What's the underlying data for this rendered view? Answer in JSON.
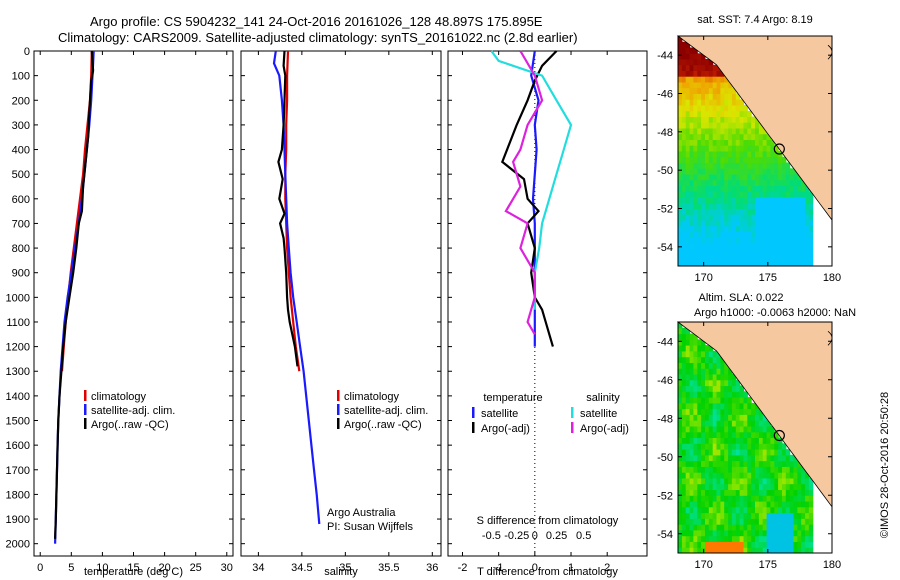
{
  "header": {
    "line1": "Argo profile: CS 5904232_141 24-Oct-2016 20161026_128 48.897S 175.895E",
    "line2": "Climatology: CARS2009. Satellite-adjusted climatology: synTS_20161022.nc (2.8d earlier)"
  },
  "colors": {
    "climatology": "#e00000",
    "satellite_adj": "#1a1aff",
    "argo": "#000000",
    "salinity_satellite": "#22dddd",
    "salinity_argo": "#dd22dd",
    "land": "#f5c8a0"
  },
  "chart_data": [
    {
      "type": "line",
      "id": "temperature",
      "xlabel": "temperature (deg C)",
      "ylabel": "",
      "xlim": [
        -1,
        31
      ],
      "ylim": [
        2050,
        0
      ],
      "y_reversed": true,
      "xticks": [
        "0",
        "5",
        "10",
        "15",
        "20",
        "25",
        "30"
      ],
      "yticks": [
        "0",
        "100",
        "200",
        "300",
        "400",
        "500",
        "600",
        "700",
        "800",
        "900",
        "1000",
        "1100",
        "1200",
        "1300",
        "1400",
        "1500",
        "1600",
        "1700",
        "1800",
        "1900",
        "2000"
      ],
      "legend": [
        "climatology",
        "satellite-adj. clim.",
        "Argo(..raw -QC)"
      ],
      "legend_position": "lower-center",
      "series": [
        {
          "name": "climatology",
          "color": "#e00000",
          "x": [
            8.3,
            8.2,
            8.0,
            7.6,
            7.2,
            6.9,
            6.4,
            5.9,
            5.4,
            4.9,
            4.5,
            4.1,
            3.8,
            3.5
          ],
          "y": [
            0,
            100,
            200,
            300,
            400,
            500,
            600,
            700,
            800,
            900,
            1000,
            1100,
            1200,
            1300
          ]
        },
        {
          "name": "satellite-adj. clim.",
          "color": "#1a1aff",
          "x": [
            8.6,
            8.4,
            8.2,
            7.9,
            7.5,
            7.1,
            6.7,
            6.2,
            5.6,
            5.0,
            4.4,
            3.9,
            3.6,
            3.3,
            3.1,
            2.9,
            2.8,
            2.7,
            2.6,
            2.5,
            2.4
          ],
          "y": [
            0,
            100,
            200,
            300,
            400,
            500,
            600,
            700,
            800,
            900,
            1000,
            1100,
            1200,
            1300,
            1400,
            1500,
            1600,
            1700,
            1800,
            1900,
            2000
          ]
        },
        {
          "name": "Argo(..raw -QC)",
          "color": "#000000",
          "x": [
            8.3,
            8.5,
            8.2,
            7.9,
            7.7,
            7.3,
            6.9,
            6.7,
            6.2,
            5.8,
            5.3,
            4.7,
            4.1,
            3.7,
            3.4,
            3.1,
            2.9,
            2.8,
            2.7,
            2.6,
            2.5,
            2.4
          ],
          "y": [
            0,
            80,
            120,
            250,
            350,
            450,
            550,
            650,
            700,
            800,
            900,
            1000,
            1100,
            1200,
            1300,
            1400,
            1500,
            1600,
            1700,
            1800,
            1900,
            1980
          ]
        }
      ]
    },
    {
      "type": "line",
      "id": "salinity",
      "xlabel": "salinity",
      "xlim": [
        33.8,
        36.1
      ],
      "ylim": [
        2050,
        0
      ],
      "y_reversed": true,
      "xticks": [
        "34",
        "34.5",
        "35",
        "35.5",
        "36"
      ],
      "legend": [
        "climatology",
        "satellite-adj. clim.",
        "Argo(..raw -QC)"
      ],
      "legend_position": "lower-center",
      "annotation_lines": [
        "Argo Australia",
        "PI: Susan Wijffels"
      ],
      "series": [
        {
          "name": "climatology",
          "color": "#e00000",
          "x": [
            34.34,
            34.33,
            34.33,
            34.32,
            34.32,
            34.31,
            34.31,
            34.32,
            34.33,
            34.35,
            34.37,
            34.4,
            34.43,
            34.47
          ],
          "y": [
            0,
            100,
            200,
            300,
            400,
            500,
            600,
            700,
            800,
            900,
            1000,
            1100,
            1200,
            1300
          ]
        },
        {
          "name": "satellite-adj. clim.",
          "color": "#1a1aff",
          "x": [
            34.2,
            34.18,
            34.24,
            34.27,
            34.29,
            34.3,
            34.31,
            34.32,
            34.33,
            34.35,
            34.37,
            34.4,
            34.44,
            34.48,
            34.52,
            34.55,
            34.58,
            34.61,
            34.64,
            34.67,
            34.7
          ],
          "y": [
            0,
            50,
            100,
            200,
            300,
            400,
            500,
            600,
            700,
            800,
            900,
            1000,
            1100,
            1200,
            1300,
            1400,
            1500,
            1600,
            1700,
            1800,
            1920
          ]
        },
        {
          "name": "Argo(..raw -QC)",
          "color": "#000000",
          "x": [
            34.3,
            34.29,
            34.31,
            34.3,
            34.29,
            34.27,
            34.23,
            34.28,
            34.24,
            34.3,
            34.25,
            34.29,
            34.3,
            34.32,
            34.33,
            34.34,
            34.36,
            34.39,
            34.42,
            34.45
          ],
          "y": [
            0,
            60,
            100,
            200,
            300,
            400,
            450,
            520,
            600,
            660,
            700,
            760,
            800,
            900,
            1000,
            1050,
            1100,
            1150,
            1200,
            1280
          ]
        }
      ]
    },
    {
      "type": "line",
      "id": "differences",
      "xlabel_bottom": "T difference from climatology",
      "xlabel_top": "S difference from climatology",
      "xlim": [
        -2.4,
        3.1
      ],
      "ylim": [
        2050,
        0
      ],
      "y_reversed": true,
      "xticks_bottom": [
        "-2",
        "-1",
        "0",
        "1",
        "2"
      ],
      "xticks_top": [
        "-0.5",
        "-0.25",
        "0",
        "0.25",
        "0.5"
      ],
      "zero_line": "dotted",
      "legend_headers": [
        "temperature",
        "salinity"
      ],
      "legend": [
        "satellite",
        "Argo(-adj)",
        "satellite",
        "Argo(-adj)"
      ],
      "legend_position": "lower-center",
      "series": [
        {
          "name": "satellite",
          "group": "temperature",
          "color": "#1a1aff",
          "x": [
            0.0,
            -0.1,
            0.1,
            0.0,
            0.05,
            0.0,
            -0.05,
            0.0,
            0.0,
            0.0,
            0.0,
            0.0
          ],
          "y": [
            0,
            100,
            200,
            300,
            400,
            500,
            600,
            700,
            800,
            900,
            1000,
            1200
          ]
        },
        {
          "name": "Argo(-adj)",
          "group": "temperature",
          "color": "#000000",
          "x": [
            0.6,
            0.2,
            0.0,
            -0.2,
            -0.5,
            -0.9,
            -0.3,
            -0.2,
            0.1,
            -0.2,
            0.0,
            -0.1,
            0.0,
            0.2,
            0.3,
            0.4,
            0.5
          ],
          "y": [
            0,
            60,
            120,
            200,
            300,
            450,
            520,
            600,
            650,
            700,
            800,
            900,
            1000,
            1050,
            1100,
            1150,
            1200
          ]
        },
        {
          "name": "satellite",
          "group": "salinity",
          "color": "#22dddd",
          "x": [
            -0.3,
            -0.25,
            0.05,
            0.15,
            0.25,
            0.2,
            0.15,
            0.1,
            0.05,
            0.03,
            0.0,
            0.0
          ],
          "y": [
            0,
            40,
            100,
            200,
            300,
            400,
            500,
            600,
            700,
            800,
            900,
            1050
          ]
        },
        {
          "name": "Argo(-adj)",
          "group": "salinity",
          "color": "#dd22dd",
          "x": [
            -0.1,
            0.0,
            0.05,
            -0.05,
            -0.1,
            -0.15,
            -0.1,
            -0.2,
            -0.05,
            -0.1,
            0.0,
            0.0,
            -0.05,
            0.0
          ],
          "y": [
            0,
            100,
            200,
            300,
            400,
            450,
            550,
            650,
            700,
            800,
            900,
            1000,
            1100,
            1150
          ]
        }
      ]
    },
    {
      "type": "heatmap",
      "id": "sst-map",
      "title": "sat. SST: 7.4 Argo: 8.19",
      "xlim": [
        168,
        180
      ],
      "ylim": [
        -55,
        -43
      ],
      "xticks": [
        "170",
        "175",
        "180"
      ],
      "yticks": [
        "-44",
        "-46",
        "-48",
        "-50",
        "-52",
        "-54"
      ],
      "marker": {
        "lon": 175.895,
        "lat": -48.897
      }
    },
    {
      "type": "heatmap",
      "id": "sla-map",
      "title_lines": [
        "Altim. SLA: 0.022",
        "Argo h1000: -0.0063 h2000: NaN"
      ],
      "xlim": [
        168,
        180
      ],
      "ylim": [
        -55,
        -43
      ],
      "xticks": [
        "170",
        "175",
        "180"
      ],
      "yticks": [
        "-44",
        "-46",
        "-48",
        "-50",
        "-52",
        "-54"
      ],
      "marker": {
        "lon": 175.895,
        "lat": -48.897
      }
    }
  ],
  "credit": "©IMOS 28-Oct-2016 20:50:28"
}
